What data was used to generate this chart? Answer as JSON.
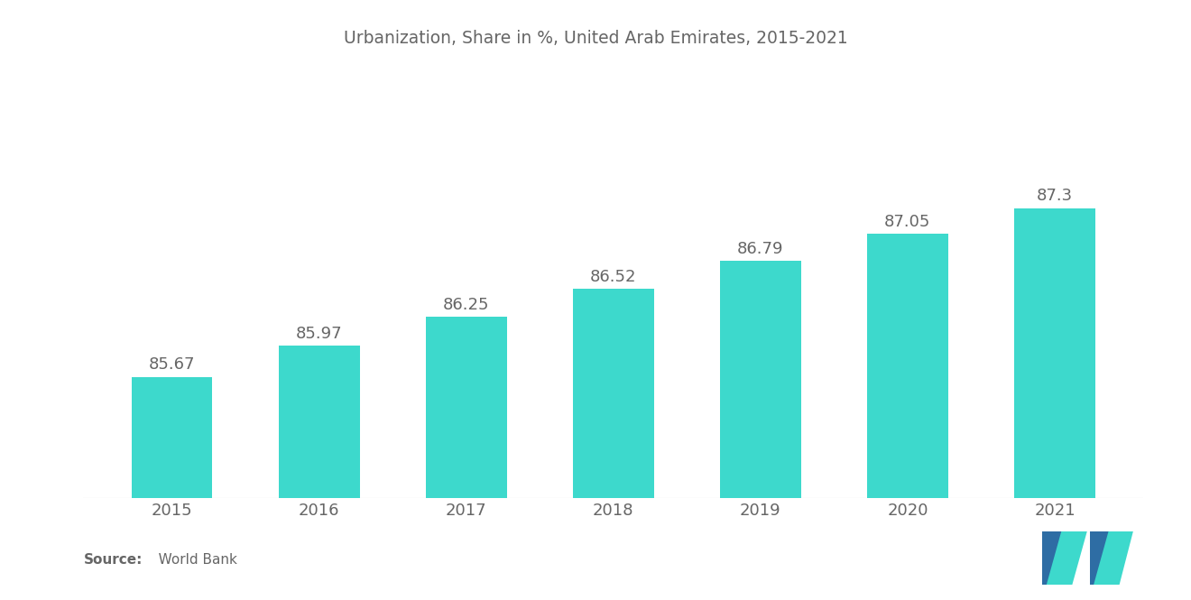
{
  "title": "Urbanization, Share in %, United Arab Emirates, 2015-2021",
  "years": [
    2015,
    2016,
    2017,
    2018,
    2019,
    2020,
    2021
  ],
  "values": [
    85.67,
    85.97,
    86.25,
    86.52,
    86.79,
    87.05,
    87.3
  ],
  "bar_color": "#3DD9CC",
  "background_color": "#ffffff",
  "title_fontsize": 13.5,
  "label_fontsize": 13,
  "value_label_fontsize": 13,
  "source_text_bold": "Source:",
  "source_text_normal": "   World Bank",
  "ylim_min": 84.5,
  "ylim_max": 88.5,
  "bar_width": 0.55,
  "logo_blue": "#2E6DA4",
  "logo_teal": "#3DD9CC",
  "text_color": "#666666"
}
